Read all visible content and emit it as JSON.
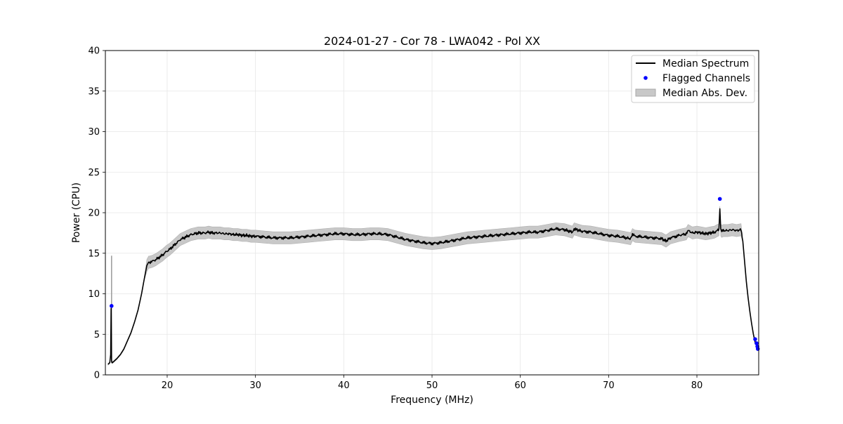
{
  "chart_data": {
    "type": "line",
    "title": "2024-01-27 - Cor 78 - LWA042 - Pol XX",
    "xlabel": "Frequency (MHz)",
    "ylabel": "Power (CPU)",
    "xlim": [
      13.0,
      87.0
    ],
    "ylim": [
      0,
      40
    ],
    "x_ticks": [
      20,
      30,
      40,
      50,
      60,
      70,
      80
    ],
    "y_ticks": [
      0,
      5,
      10,
      15,
      20,
      25,
      30,
      35,
      40
    ],
    "grid": true,
    "legend_position": "top-right",
    "colors": {
      "median": "#000000",
      "flagged": "#0000ff",
      "mad_band": "#c8c8c8",
      "grid": "#e6e6e6"
    },
    "series": [
      {
        "name": "Median Spectrum",
        "kind": "line",
        "x": [
          13.3,
          13.5,
          13.6,
          13.65,
          13.7,
          13.75,
          13.8,
          14.0,
          14.3,
          14.7,
          15.1,
          15.5,
          15.9,
          16.3,
          16.7,
          17.1,
          17.4,
          17.7,
          17.9,
          18.0,
          18.3,
          18.7,
          19.1,
          19.5,
          19.9,
          20.3,
          20.7,
          21.1,
          21.5,
          21.9,
          22.3,
          22.7,
          23.1,
          23.5,
          23.9,
          24.3,
          24.7,
          25.1,
          25.5,
          26.0,
          26.5,
          27.0,
          27.5,
          28.0,
          28.5,
          29.0,
          29.5,
          30.0,
          31.0,
          32.0,
          33.0,
          34.0,
          35.0,
          36.0,
          37.0,
          38.0,
          39.0,
          40.0,
          41.0,
          42.0,
          43.0,
          44.0,
          45.0,
          46.0,
          47.0,
          48.0,
          49.0,
          50.0,
          51.0,
          52.0,
          53.0,
          54.0,
          55.0,
          56.0,
          57.0,
          58.0,
          59.0,
          60.0,
          61.0,
          62.0,
          63.0,
          64.0,
          65.0,
          65.9,
          66.1,
          67.0,
          68.0,
          69.0,
          70.0,
          71.0,
          72.0,
          72.5,
          72.7,
          73.0,
          74.0,
          75.0,
          76.0,
          76.5,
          77.0,
          78.0,
          78.8,
          79.0,
          79.5,
          80.0,
          80.5,
          81.0,
          81.5,
          82.0,
          82.3,
          82.5,
          82.6,
          82.7,
          82.8,
          83.0,
          83.5,
          84.0,
          84.5,
          85.0,
          85.2,
          85.4,
          85.6,
          85.8,
          86.0,
          86.2,
          86.4,
          86.6,
          86.8,
          87.0
        ],
        "values": [
          1.3,
          1.5,
          2.5,
          8.2,
          1.8,
          1.5,
          1.5,
          1.7,
          2.0,
          2.5,
          3.2,
          4.2,
          5.2,
          6.5,
          8.0,
          10.0,
          11.8,
          13.5,
          13.9,
          13.9,
          14.0,
          14.2,
          14.5,
          14.8,
          15.2,
          15.5,
          15.9,
          16.3,
          16.7,
          16.9,
          17.1,
          17.3,
          17.4,
          17.5,
          17.5,
          17.5,
          17.6,
          17.5,
          17.5,
          17.5,
          17.4,
          17.4,
          17.3,
          17.3,
          17.2,
          17.2,
          17.1,
          17.1,
          17.0,
          16.9,
          16.9,
          16.9,
          17.0,
          17.1,
          17.2,
          17.3,
          17.4,
          17.4,
          17.3,
          17.3,
          17.4,
          17.4,
          17.3,
          17.0,
          16.7,
          16.5,
          16.3,
          16.2,
          16.3,
          16.5,
          16.7,
          16.9,
          17.0,
          17.1,
          17.2,
          17.3,
          17.4,
          17.5,
          17.6,
          17.6,
          17.8,
          18.0,
          17.9,
          17.6,
          18.0,
          17.7,
          17.6,
          17.4,
          17.2,
          17.1,
          16.9,
          16.8,
          17.3,
          17.1,
          17.0,
          16.9,
          16.8,
          16.5,
          16.9,
          17.2,
          17.4,
          17.8,
          17.5,
          17.6,
          17.5,
          17.4,
          17.5,
          17.6,
          17.8,
          17.9,
          20.6,
          17.9,
          17.7,
          17.8,
          17.8,
          17.9,
          17.8,
          17.9,
          16.5,
          14.0,
          11.5,
          9.5,
          7.8,
          6.3,
          5.0,
          4.0,
          3.5,
          3.1
        ]
      },
      {
        "name": "Flagged Channels",
        "kind": "scatter",
        "x": [
          13.7,
          82.6,
          86.6,
          86.75,
          86.85,
          86.9
        ],
        "values": [
          8.5,
          21.7,
          4.4,
          3.9,
          3.5,
          3.2
        ]
      },
      {
        "name": "Median Abs. Dev.",
        "kind": "band",
        "spike": {
          "x": 13.7,
          "upper": 14.7
        }
      }
    ]
  }
}
